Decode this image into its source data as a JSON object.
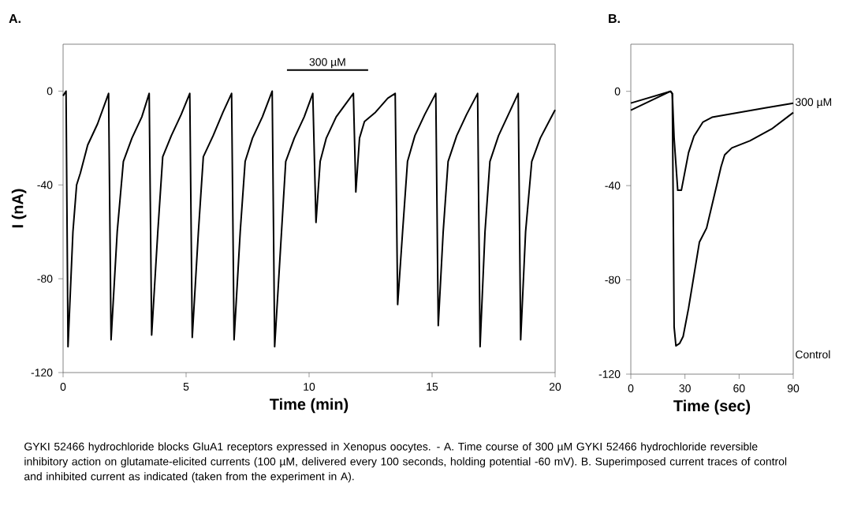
{
  "chart_data": [
    {
      "type": "line",
      "title": "A.",
      "xlabel": "Time (min)",
      "ylabel": "I (nA)",
      "series": [
        {
          "color": "#000000",
          "x": [
            0,
            0.12,
            0.2,
            0.4,
            0.55,
            0.7,
            1.0,
            1.4,
            1.85,
            1.95,
            2.2,
            2.45,
            2.8,
            3.2,
            3.5,
            3.6,
            3.85,
            4.05,
            4.4,
            4.8,
            5.15,
            5.25,
            5.5,
            5.7,
            6.1,
            6.5,
            6.85,
            6.95,
            7.2,
            7.4,
            7.7,
            8.1,
            8.5,
            8.6,
            8.85,
            9.05,
            9.4,
            9.8,
            10.15,
            10.28,
            10.45,
            10.7,
            11.1,
            11.8,
            11.9,
            12.05,
            12.25,
            12.7,
            13.2,
            13.5,
            13.6,
            13.8,
            14.0,
            14.3,
            14.7,
            15.15,
            15.25,
            15.45,
            15.65,
            16.0,
            16.4,
            16.85,
            16.95,
            17.15,
            17.35,
            17.7,
            18.1,
            18.5,
            18.6,
            18.8,
            19.05,
            19.4,
            19.8,
            20
          ],
          "values": [
            -2,
            0,
            -109,
            -60,
            -40,
            -35,
            -23,
            -14,
            -1,
            -106,
            -60,
            -30,
            -20,
            -11,
            -1,
            -104,
            -60,
            -28,
            -19,
            -10,
            -1,
            -105,
            -60,
            -28,
            -19,
            -9,
            -1,
            -106,
            -60,
            -30,
            -20,
            -11,
            0,
            -109,
            -65,
            -30,
            -20,
            -11,
            -1,
            -56,
            -30,
            -20,
            -11,
            -1,
            -43,
            -20,
            -13,
            -9,
            -3,
            -1,
            -91,
            -60,
            -30,
            -19,
            -10,
            -1,
            -100,
            -60,
            -30,
            -19,
            -10,
            -1,
            -109,
            -60,
            -30,
            -19,
            -10,
            -1,
            -106,
            -60,
            -30,
            -20,
            -12,
            -8
          ]
        },
        {
          "name": "300 µM",
          "color": "#000000",
          "x": [
            9.1,
            12.4
          ],
          "values": [
            9,
            9
          ]
        }
      ],
      "xlim": [
        0,
        20
      ],
      "ylim": [
        -120,
        20
      ],
      "xticks": [
        0,
        5,
        10,
        15,
        20
      ],
      "yticks": [
        0,
        -40,
        -80,
        -120
      ],
      "annotations": [
        "GYKI 52466 hydrochloride blocks GluA1 receptors expressed in Xenopus oocytes. - A. Time course of 300 µM GYKI 52466 hydrochloride reversible inhibitory action on glutamate-elicited currents (100 µM, delivered every 100 seconds, holding potential -60 mV). B. Superimposed current traces of control and inhibited current as indicated (taken from the experiment in A)."
      ]
    },
    {
      "type": "line",
      "title": "B.",
      "xlabel": "Time (sec)",
      "series": [
        {
          "name": "300 µM",
          "color": "#000000",
          "x": [
            0,
            22,
            23,
            24,
            26,
            28,
            30,
            32,
            35,
            40,
            45,
            60,
            75,
            90
          ],
          "values": [
            -5,
            0,
            -1,
            -20,
            -42,
            -42,
            -34,
            -26,
            -19,
            -13,
            -11,
            -9,
            -7,
            -5
          ]
        },
        {
          "name": "Control",
          "color": "#000000",
          "x": [
            0,
            22,
            23,
            24,
            25,
            27,
            29,
            32,
            35,
            38,
            42,
            46,
            50,
            52,
            56,
            66,
            78,
            90
          ],
          "values": [
            -8,
            0,
            -1,
            -100,
            -108,
            -107,
            -104,
            -92,
            -78,
            -64,
            -58,
            -45,
            -32,
            -27,
            -24,
            -21,
            -16,
            -9
          ]
        }
      ],
      "xlim": [
        0,
        90
      ],
      "ylim": [
        -120,
        20
      ],
      "xticks": [
        0,
        30,
        60,
        90
      ],
      "yticks": [
        0,
        -40,
        -80,
        -120
      ]
    }
  ]
}
